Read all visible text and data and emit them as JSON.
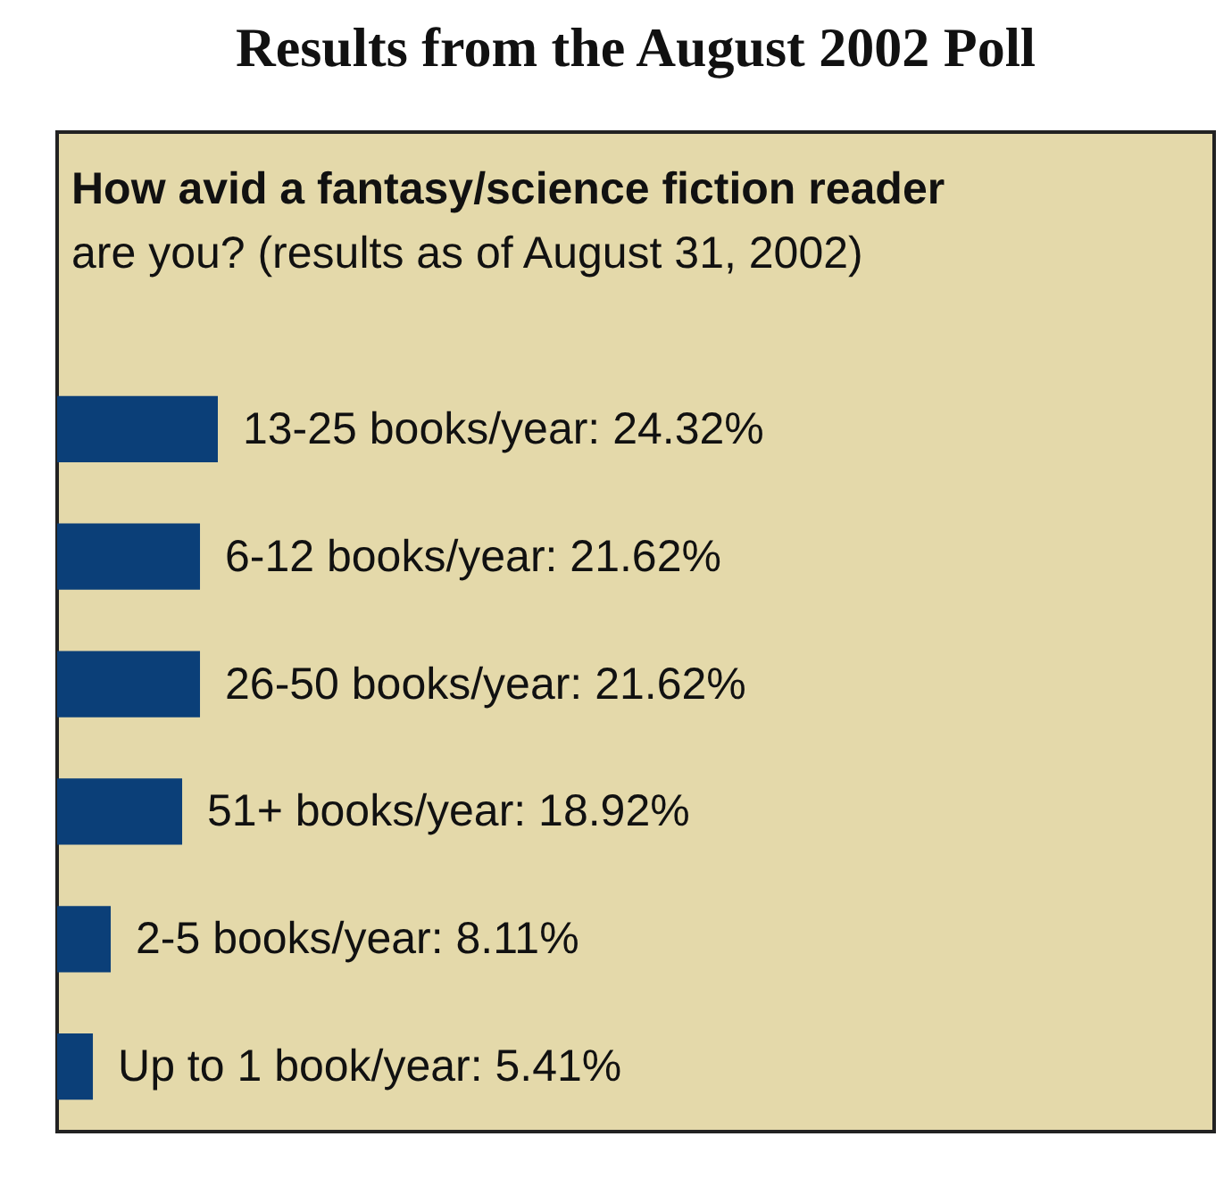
{
  "chart_data": {
    "type": "bar",
    "orientation": "horizontal",
    "title": "Results from the August 2002 Poll",
    "subtitle": "How avid a fantasy/science fiction reader are you? (results as of August 31, 2002)",
    "categories": [
      null,
      null,
      null,
      null,
      null,
      null
    ],
    "values": [
      24.32,
      21.62,
      21.62,
      18.92,
      8.11,
      5.41
    ],
    "value_labels": [
      "13-25 books/year: 24.32%",
      "6-12 books/year: 21.62%",
      "26-50 books/year: 21.62%",
      "51+ books/year: 18.92%",
      "2-5 books/year: 8.11%",
      "Up to 1 book/year: 5.41%"
    ],
    "color": "#0b3f78"
  }
}
